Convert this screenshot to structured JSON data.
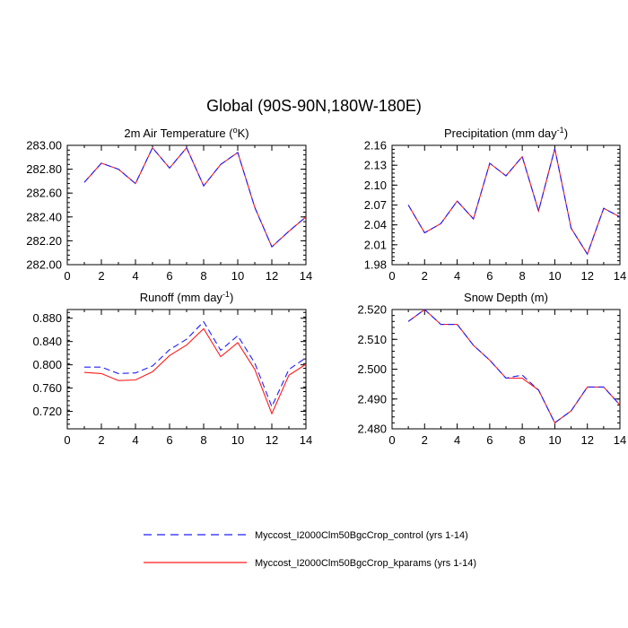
{
  "figure_title": "Global (90S-90N,180W-180E)",
  "colors": {
    "control": "#1f1fff",
    "kparams": "#ff1a1a",
    "axis": "#000000"
  },
  "legend": {
    "control_label": "Myccost_I2000Clm50BgcCrop_control (yrs 1-14)",
    "kparams_label": "Myccost_I2000Clm50BgcCrop_kparams (yrs 1-14)"
  },
  "chart_data": [
    {
      "type": "line",
      "title_text": "2m Air Temperature (",
      "title_sup_prefix": "o",
      "title_after_sup": "K)",
      "xlim": [
        0,
        14
      ],
      "ylim": [
        282.0,
        283.0
      ],
      "xticks": [
        "0",
        "2",
        "4",
        "6",
        "8",
        "10",
        "12",
        "14"
      ],
      "yticks": [
        "282.00",
        "282.20",
        "282.40",
        "282.60",
        "282.80",
        "283.00"
      ],
      "x": [
        1,
        2,
        3,
        4,
        5,
        6,
        7,
        8,
        9,
        10,
        11,
        12,
        13,
        14
      ],
      "series": [
        {
          "name": "Myccost_I2000Clm50BgcCrop_control (yrs 1-14)",
          "style": "dashed",
          "values": [
            282.69,
            282.85,
            282.8,
            282.68,
            282.98,
            282.81,
            282.98,
            282.66,
            282.84,
            282.94,
            282.48,
            282.15,
            282.28,
            282.4
          ]
        },
        {
          "name": "Myccost_I2000Clm50BgcCrop_kparams (yrs 1-14)",
          "style": "solid",
          "values": [
            282.69,
            282.85,
            282.8,
            282.68,
            282.98,
            282.81,
            282.98,
            282.66,
            282.84,
            282.94,
            282.48,
            282.15,
            282.28,
            282.4
          ]
        }
      ]
    },
    {
      "type": "line",
      "title_text": "Precipitation (mm day",
      "title_sup_prefix": "-1",
      "title_after_sup": ")",
      "xlim": [
        0,
        14
      ],
      "ylim": [
        1.98,
        2.16
      ],
      "xticks": [
        "0",
        "2",
        "4",
        "6",
        "8",
        "10",
        "12",
        "14"
      ],
      "yticks": [
        "1.98",
        "2.01",
        "2.04",
        "2.07",
        "2.10",
        "2.13",
        "2.16"
      ],
      "x": [
        1,
        2,
        3,
        4,
        5,
        6,
        7,
        8,
        9,
        10,
        11,
        12,
        13,
        14
      ],
      "series": [
        {
          "name": "Myccost_I2000Clm50BgcCrop_control (yrs 1-14)",
          "style": "dashed",
          "values": [
            2.07,
            2.028,
            2.042,
            2.076,
            2.049,
            2.133,
            2.114,
            2.143,
            2.061,
            2.155,
            2.035,
            1.996,
            2.065,
            2.052
          ]
        },
        {
          "name": "Myccost_I2000Clm50BgcCrop_kparams (yrs 1-14)",
          "style": "solid",
          "values": [
            2.07,
            2.028,
            2.042,
            2.076,
            2.049,
            2.133,
            2.114,
            2.143,
            2.061,
            2.155,
            2.035,
            1.996,
            2.065,
            2.052
          ]
        }
      ]
    },
    {
      "type": "line",
      "title_text": "Runoff (mm day",
      "title_sup_prefix": "-1",
      "title_after_sup": ")",
      "xlim": [
        0,
        14
      ],
      "ylim": [
        0.69,
        0.895
      ],
      "xticks": [
        "0",
        "2",
        "4",
        "6",
        "8",
        "10",
        "12",
        "14"
      ],
      "yticks": [
        "0.720",
        "0.760",
        "0.800",
        "0.840",
        "0.880"
      ],
      "ytick_values": [
        0.72,
        0.76,
        0.8,
        0.84,
        0.88
      ],
      "x": [
        1,
        2,
        3,
        4,
        5,
        6,
        7,
        8,
        9,
        10,
        11,
        12,
        13,
        14
      ],
      "series": [
        {
          "name": "Myccost_I2000Clm50BgcCrop_control (yrs 1-14)",
          "style": "dashed",
          "values": [
            0.796,
            0.796,
            0.785,
            0.786,
            0.798,
            0.826,
            0.844,
            0.874,
            0.825,
            0.85,
            0.803,
            0.728,
            0.792,
            0.812
          ]
        },
        {
          "name": "Myccost_I2000Clm50BgcCrop_kparams (yrs 1-14)",
          "style": "solid",
          "values": [
            0.787,
            0.785,
            0.773,
            0.774,
            0.788,
            0.816,
            0.834,
            0.862,
            0.814,
            0.838,
            0.792,
            0.716,
            0.782,
            0.801
          ]
        }
      ]
    },
    {
      "type": "line",
      "title_text": "Snow Depth (m)",
      "title_sup_prefix": "",
      "title_after_sup": "",
      "xlim": [
        0,
        14
      ],
      "ylim": [
        2.48,
        2.52
      ],
      "xticks": [
        "0",
        "2",
        "4",
        "6",
        "8",
        "10",
        "12",
        "14"
      ],
      "yticks": [
        "2.480",
        "2.490",
        "2.500",
        "2.510",
        "2.520"
      ],
      "x": [
        1,
        2,
        3,
        4,
        5,
        6,
        7,
        8,
        9,
        10,
        11,
        12,
        13,
        14
      ],
      "series": [
        {
          "name": "Myccost_I2000Clm50BgcCrop_control (yrs 1-14)",
          "style": "dashed",
          "values": [
            2.516,
            2.52,
            2.515,
            2.515,
            2.508,
            2.503,
            2.497,
            2.498,
            2.493,
            2.482,
            2.486,
            2.494,
            2.494,
            2.488
          ]
        },
        {
          "name": "Myccost_I2000Clm50BgcCrop_kparams (yrs 1-14)",
          "style": "solid",
          "values": [
            2.516,
            2.52,
            2.515,
            2.515,
            2.508,
            2.503,
            2.497,
            2.497,
            2.493,
            2.482,
            2.486,
            2.494,
            2.494,
            2.488
          ]
        }
      ]
    }
  ]
}
